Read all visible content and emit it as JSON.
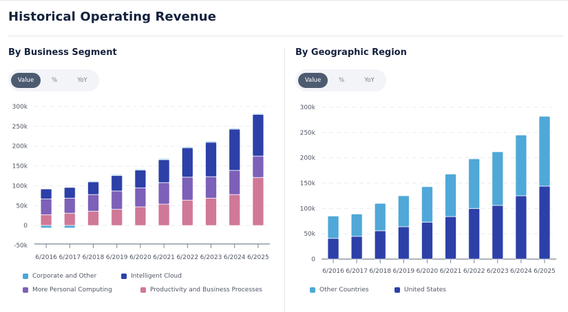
{
  "page": {
    "title": "Historical Operating Revenue"
  },
  "toggle_options": [
    "Value",
    "%",
    "YoY"
  ],
  "left_panel": {
    "title": "By Business Segment",
    "active_toggle": "Value"
  },
  "right_panel": {
    "title": "By Geographic Region",
    "active_toggle": "Value"
  },
  "chart_data": [
    {
      "type": "bar",
      "stacked": true,
      "title": "By Business Segment",
      "xlabel": "",
      "ylabel": "",
      "ylim": [
        -50000,
        300000
      ],
      "yticks": [
        -50000,
        0,
        50000,
        100000,
        150000,
        200000,
        250000,
        300000
      ],
      "ytick_labels": [
        "-50k",
        "0",
        "50k",
        "100k",
        "150k",
        "200k",
        "250k",
        "300k"
      ],
      "grid": true,
      "legend_position": "bottom",
      "categories": [
        "6/2016",
        "6/2017",
        "6/2018",
        "6/2019",
        "6/2020",
        "6/2021",
        "6/2022",
        "6/2023",
        "6/2024",
        "6/2025"
      ],
      "series": [
        {
          "name": "Productivity and Business Processes",
          "color": "#d07898",
          "values": [
            27000,
            31000,
            36000,
            41000,
            47000,
            54000,
            64000,
            69000,
            78000,
            121000
          ]
        },
        {
          "name": "More Personal Computing",
          "color": "#7d60b8",
          "values": [
            40000,
            38000,
            42000,
            46000,
            48000,
            54000,
            58000,
            54000,
            61000,
            54000
          ]
        },
        {
          "name": "Intelligent Cloud",
          "color": "#2c40a8",
          "values": [
            25000,
            27000,
            32000,
            39000,
            45000,
            58000,
            74000,
            87000,
            104000,
            105000
          ]
        },
        {
          "name": "Corporate and Other",
          "color": "#4aa8d8",
          "values": [
            -6000,
            -6000,
            2000,
            2000,
            2000,
            2000,
            2000,
            2000,
            2000,
            2000
          ]
        }
      ],
      "legend": [
        {
          "name": "Corporate and Other",
          "color": "#4aa8d8"
        },
        {
          "name": "Intelligent Cloud",
          "color": "#2c40a8"
        },
        {
          "name": "More Personal Computing",
          "color": "#7d60b8"
        },
        {
          "name": "Productivity and Business Processes",
          "color": "#d07898"
        }
      ]
    },
    {
      "type": "bar",
      "stacked": true,
      "title": "By Geographic Region",
      "xlabel": "",
      "ylabel": "",
      "ylim": [
        0,
        300000
      ],
      "yticks": [
        0,
        50000,
        100000,
        150000,
        200000,
        250000,
        300000
      ],
      "ytick_labels": [
        "0",
        "50k",
        "100k",
        "150k",
        "200k",
        "250k",
        "300k"
      ],
      "grid": true,
      "legend_position": "bottom",
      "categories": [
        "6/2016",
        "6/2017",
        "6/2018",
        "6/2019",
        "6/2020",
        "6/2021",
        "6/2022",
        "6/2023",
        "6/2024",
        "6/2025"
      ],
      "series": [
        {
          "name": "United States",
          "color": "#2c40a8",
          "values": [
            41000,
            45000,
            56000,
            64000,
            73000,
            84000,
            100000,
            106000,
            125000,
            144000
          ]
        },
        {
          "name": "Other Countries",
          "color": "#4fa8d8",
          "values": [
            44000,
            44000,
            54000,
            61000,
            70000,
            84000,
            98000,
            106000,
            120000,
            138000
          ]
        }
      ],
      "legend": [
        {
          "name": "Other Countries",
          "color": "#4fa8d8"
        },
        {
          "name": "United States",
          "color": "#2c40a8"
        }
      ]
    }
  ]
}
